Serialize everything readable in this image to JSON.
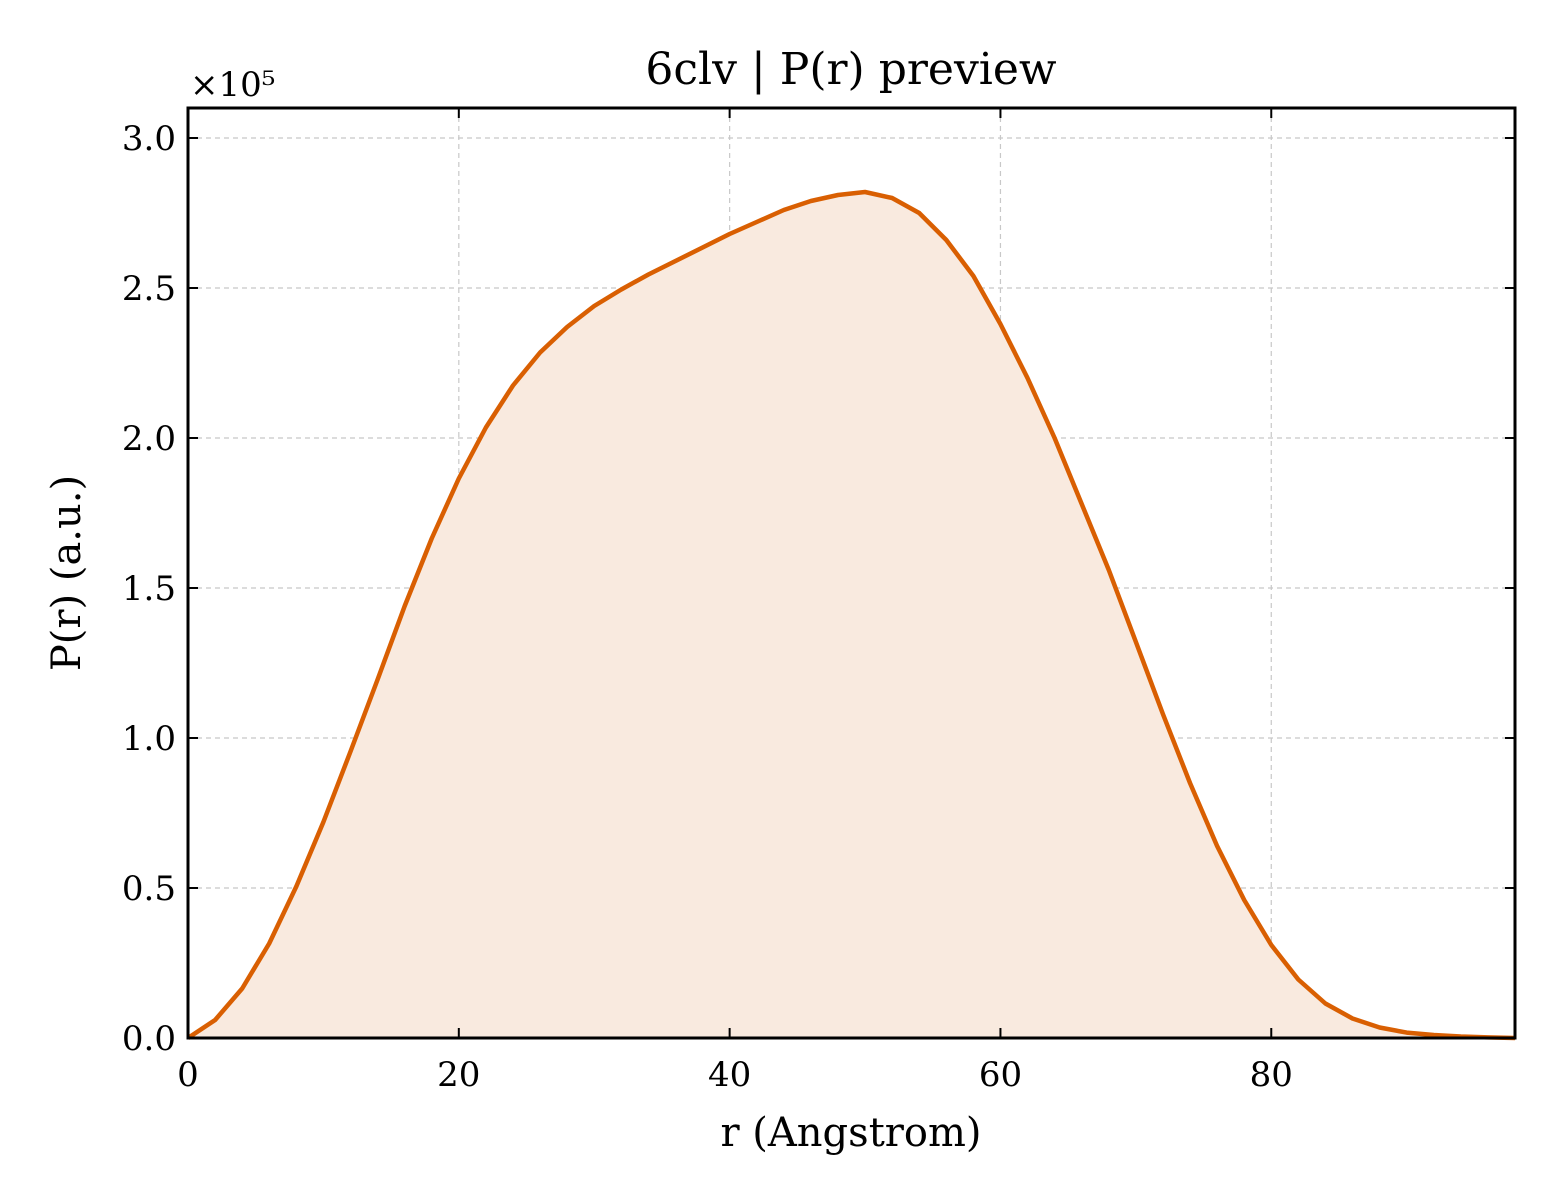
{
  "chart_data": {
    "type": "area",
    "title": "6clv | P(r) preview",
    "xlabel": "r (Angstrom)",
    "ylabel": "P(r) (a.u.)",
    "y_multiplier_label": "×10⁵",
    "xlim": [
      0,
      98
    ],
    "ylim": [
      0,
      3.1
    ],
    "xticks": [
      0,
      20,
      40,
      60,
      80
    ],
    "xtick_labels": [
      "0",
      "20",
      "40",
      "60",
      "80"
    ],
    "yticks": [
      0,
      0.5,
      1.0,
      1.5,
      2.0,
      2.5,
      3.0
    ],
    "ytick_labels": [
      "0.0",
      "0.5",
      "1.0",
      "1.5",
      "2.0",
      "2.5",
      "3.0"
    ],
    "grid": true,
    "line_color": "#d95f02",
    "fill_color": "#f9eadf",
    "series": [
      {
        "x": [
          0,
          2,
          4,
          6,
          8,
          10,
          12,
          14,
          16,
          18,
          20,
          22,
          24,
          26,
          28,
          30,
          32,
          34,
          36,
          38,
          40,
          42,
          44,
          46,
          48,
          50,
          52,
          54,
          56,
          58,
          60,
          62,
          64,
          66,
          68,
          70,
          72,
          74,
          76,
          78,
          80,
          82,
          84,
          86,
          88,
          90,
          92,
          94,
          96,
          98
        ],
        "y": [
          0.0,
          0.06,
          0.165,
          0.315,
          0.505,
          0.72,
          0.955,
          1.195,
          1.44,
          1.665,
          1.865,
          2.035,
          2.175,
          2.285,
          2.37,
          2.44,
          2.495,
          2.545,
          2.59,
          2.635,
          2.68,
          2.72,
          2.76,
          2.79,
          2.81,
          2.82,
          2.8,
          2.75,
          2.66,
          2.54,
          2.38,
          2.2,
          2.0,
          1.78,
          1.56,
          1.32,
          1.08,
          0.85,
          0.64,
          0.46,
          0.31,
          0.195,
          0.115,
          0.065,
          0.035,
          0.018,
          0.01,
          0.005,
          0.002,
          0.0
        ]
      }
    ]
  }
}
